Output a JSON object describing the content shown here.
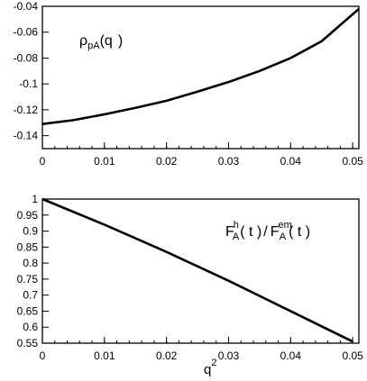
{
  "chart_data": [
    {
      "type": "line",
      "annotation": {
        "greek": "ρ",
        "sub": "pA",
        "paren_open": "(q",
        "paren_close": ")"
      },
      "xlim": [
        0,
        0.051
      ],
      "ylim": [
        -0.15,
        -0.04
      ],
      "x_ticks": [
        0,
        0.01,
        0.02,
        0.03,
        0.04,
        0.05
      ],
      "x_tick_labels": [
        "0",
        "0.01",
        "0.02",
        "0.03",
        "0.04",
        "0.05"
      ],
      "y_ticks": [
        -0.14,
        -0.12,
        -0.1,
        -0.08,
        -0.06,
        -0.04
      ],
      "y_tick_labels": [
        "-0.14",
        "-0.12",
        "-0.1",
        "-0.08",
        "-0.06",
        "-0.04"
      ],
      "xlabel": "",
      "ylabel": "",
      "series": [
        {
          "x": [
            0,
            0.005,
            0.01,
            0.015,
            0.02,
            0.025,
            0.03,
            0.035,
            0.04,
            0.045,
            0.051
          ],
          "y": [
            -0.131,
            -0.128,
            -0.1235,
            -0.1185,
            -0.113,
            -0.106,
            -0.0985,
            -0.09,
            -0.08,
            -0.067,
            -0.042
          ]
        }
      ]
    },
    {
      "type": "line",
      "annotation": {
        "f1": "F",
        "f1_sup": "h",
        "f1_sub": "A",
        "f1_arg": "( t )",
        "slash": "/",
        "f2": "F",
        "f2_sup": "em",
        "f2_sub": "A",
        "f2_arg": "( t )"
      },
      "xlim": [
        0,
        0.051
      ],
      "ylim": [
        0.55,
        1.0
      ],
      "x_ticks": [
        0,
        0.01,
        0.02,
        0.03,
        0.04,
        0.05
      ],
      "x_tick_labels": [
        "0",
        "0.01",
        "0.02",
        "0.03",
        "0.04",
        "0.05"
      ],
      "y_ticks": [
        0.55,
        0.6,
        0.65,
        0.7,
        0.75,
        0.8,
        0.85,
        0.9,
        0.95,
        1.0
      ],
      "y_tick_labels": [
        "0.55",
        "0.6",
        "0.65",
        "0.7",
        "0.75",
        "0.8",
        "0.85",
        "0.9",
        "0.95",
        "1"
      ],
      "xlabel": "q",
      "xlabel_sup": "2",
      "ylabel": "",
      "series": [
        {
          "x": [
            0,
            0.01,
            0.02,
            0.03,
            0.04,
            0.05
          ],
          "y": [
            1.0,
            0.92,
            0.835,
            0.745,
            0.65,
            0.555
          ]
        }
      ]
    }
  ]
}
